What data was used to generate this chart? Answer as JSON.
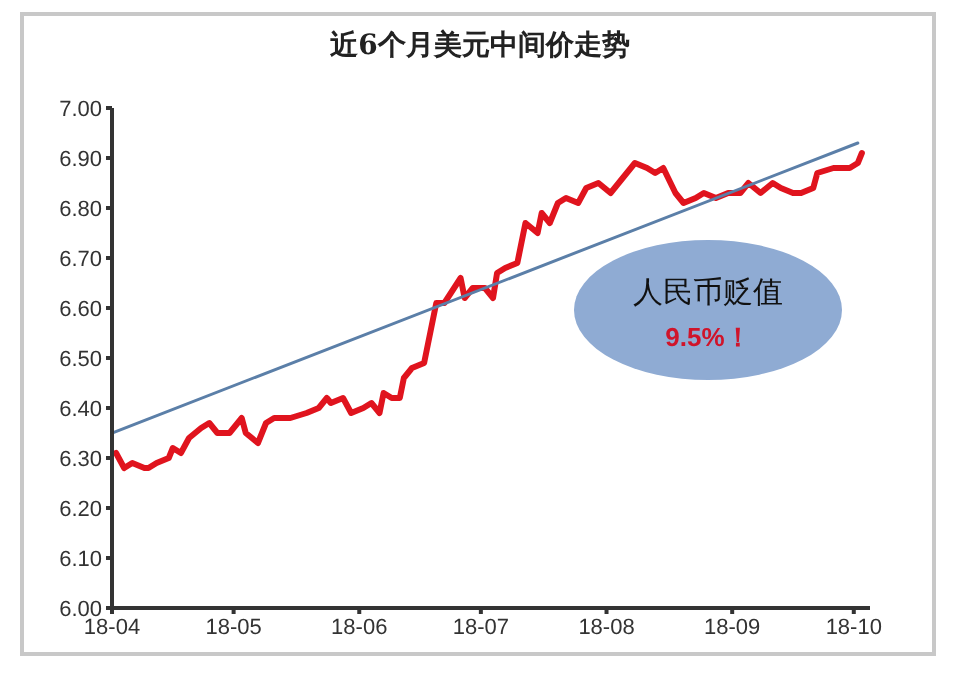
{
  "chart_data": {
    "type": "line",
    "title": "近6个月美元中间价走势",
    "series": [
      {
        "color": "#e0141e",
        "x": [
          "--04-02",
          "--04-04",
          "--04-06",
          "--04-09",
          "--04-10",
          "--04-12",
          "--04-15",
          "--04-16",
          "--04-18",
          "--04-20",
          "--04-23",
          "--04-25",
          "--04-27",
          "--04-30",
          "--05-03",
          "--05-04",
          "--05-07",
          "--05-09",
          "--05-11",
          "--05-14",
          "--05-15",
          "--05-19",
          "--05-22",
          "--05-24",
          "--05-25",
          "--05-28",
          "--05-30",
          "--06-02",
          "--06-04",
          "--06-06",
          "--06-07",
          "--06-09",
          "--06-11",
          "--06-12",
          "--06-14",
          "--06-17",
          "--06-20",
          "--06-22",
          "--06-26",
          "--06-27",
          "--06-29",
          "--07-02",
          "--07-04",
          "--07-05",
          "--07-07",
          "--07-10",
          "--07-12",
          "--07-15",
          "--07-16",
          "--07-18",
          "--07-20",
          "--07-22",
          "--07-25",
          "--07-27",
          "--07-30",
          "--08-02",
          "--08-04",
          "--08-08",
          "--08-11",
          "--08-13",
          "--08-15",
          "--08-18",
          "--08-20",
          "--08-23",
          "--08-25",
          "--08-28",
          "--08-31",
          "--09-03",
          "--09-05",
          "--09-08",
          "--09-11",
          "--09-13",
          "--09-16",
          "--09-18",
          "--09-21",
          "--09-22",
          "--09-26",
          "--09-30",
          "--10-02",
          "--10-03"
        ],
        "values": [
          6.31,
          6.28,
          6.29,
          6.28,
          6.28,
          6.29,
          6.3,
          6.32,
          6.31,
          6.34,
          6.36,
          6.37,
          6.35,
          6.35,
          6.38,
          6.35,
          6.33,
          6.37,
          6.38,
          6.38,
          6.38,
          6.39,
          6.4,
          6.42,
          6.41,
          6.42,
          6.39,
          6.4,
          6.41,
          6.39,
          6.43,
          6.42,
          6.42,
          6.46,
          6.48,
          6.49,
          6.61,
          6.61,
          6.66,
          6.62,
          6.64,
          6.64,
          6.62,
          6.67,
          6.68,
          6.69,
          6.77,
          6.75,
          6.79,
          6.77,
          6.81,
          6.82,
          6.81,
          6.84,
          6.85,
          6.83,
          6.85,
          6.89,
          6.88,
          6.87,
          6.88,
          6.83,
          6.81,
          6.82,
          6.83,
          6.82,
          6.83,
          6.83,
          6.85,
          6.83,
          6.85,
          6.84,
          6.83,
          6.83,
          6.84,
          6.87,
          6.88,
          6.88,
          6.89,
          6.91
        ]
      },
      {
        "color": "#5b7fa8",
        "x": [
          "--04-01",
          "--10-02"
        ],
        "values": [
          6.35,
          6.93
        ]
      }
    ],
    "xlim": [
      "--04-01",
      "--10-05"
    ],
    "xticks": [
      {
        "value": "--04-01",
        "label": "18-04"
      },
      {
        "value": "--05-01",
        "label": "18-05"
      },
      {
        "value": "--06-01",
        "label": "18-06"
      },
      {
        "value": "--07-01",
        "label": "18-07"
      },
      {
        "value": "--08-01",
        "label": "18-08"
      },
      {
        "value": "--09-01",
        "label": "18-09"
      },
      {
        "value": "--10-01",
        "label": "18-10"
      }
    ],
    "ylim": [
      6,
      7
    ],
    "yticks": [
      {
        "value": 6,
        "label": "6.00"
      },
      {
        "value": 6.1,
        "label": "6.10"
      },
      {
        "value": 6.2,
        "label": "6.20"
      },
      {
        "value": 6.3,
        "label": "6.30"
      },
      {
        "value": 6.4,
        "label": "6.40"
      },
      {
        "value": 6.5,
        "label": "6.50"
      },
      {
        "value": 6.6,
        "label": "6.60"
      },
      {
        "value": 6.7,
        "label": "6.70"
      },
      {
        "value": 6.8,
        "label": "6.80"
      },
      {
        "value": 6.9,
        "label": "6.90"
      },
      {
        "value": 7,
        "label": "7.00"
      }
    ],
    "annotations": [
      "人民币贬值",
      "9.5%！"
    ],
    "grid": false,
    "marker": "none",
    "line_style": "solid"
  }
}
